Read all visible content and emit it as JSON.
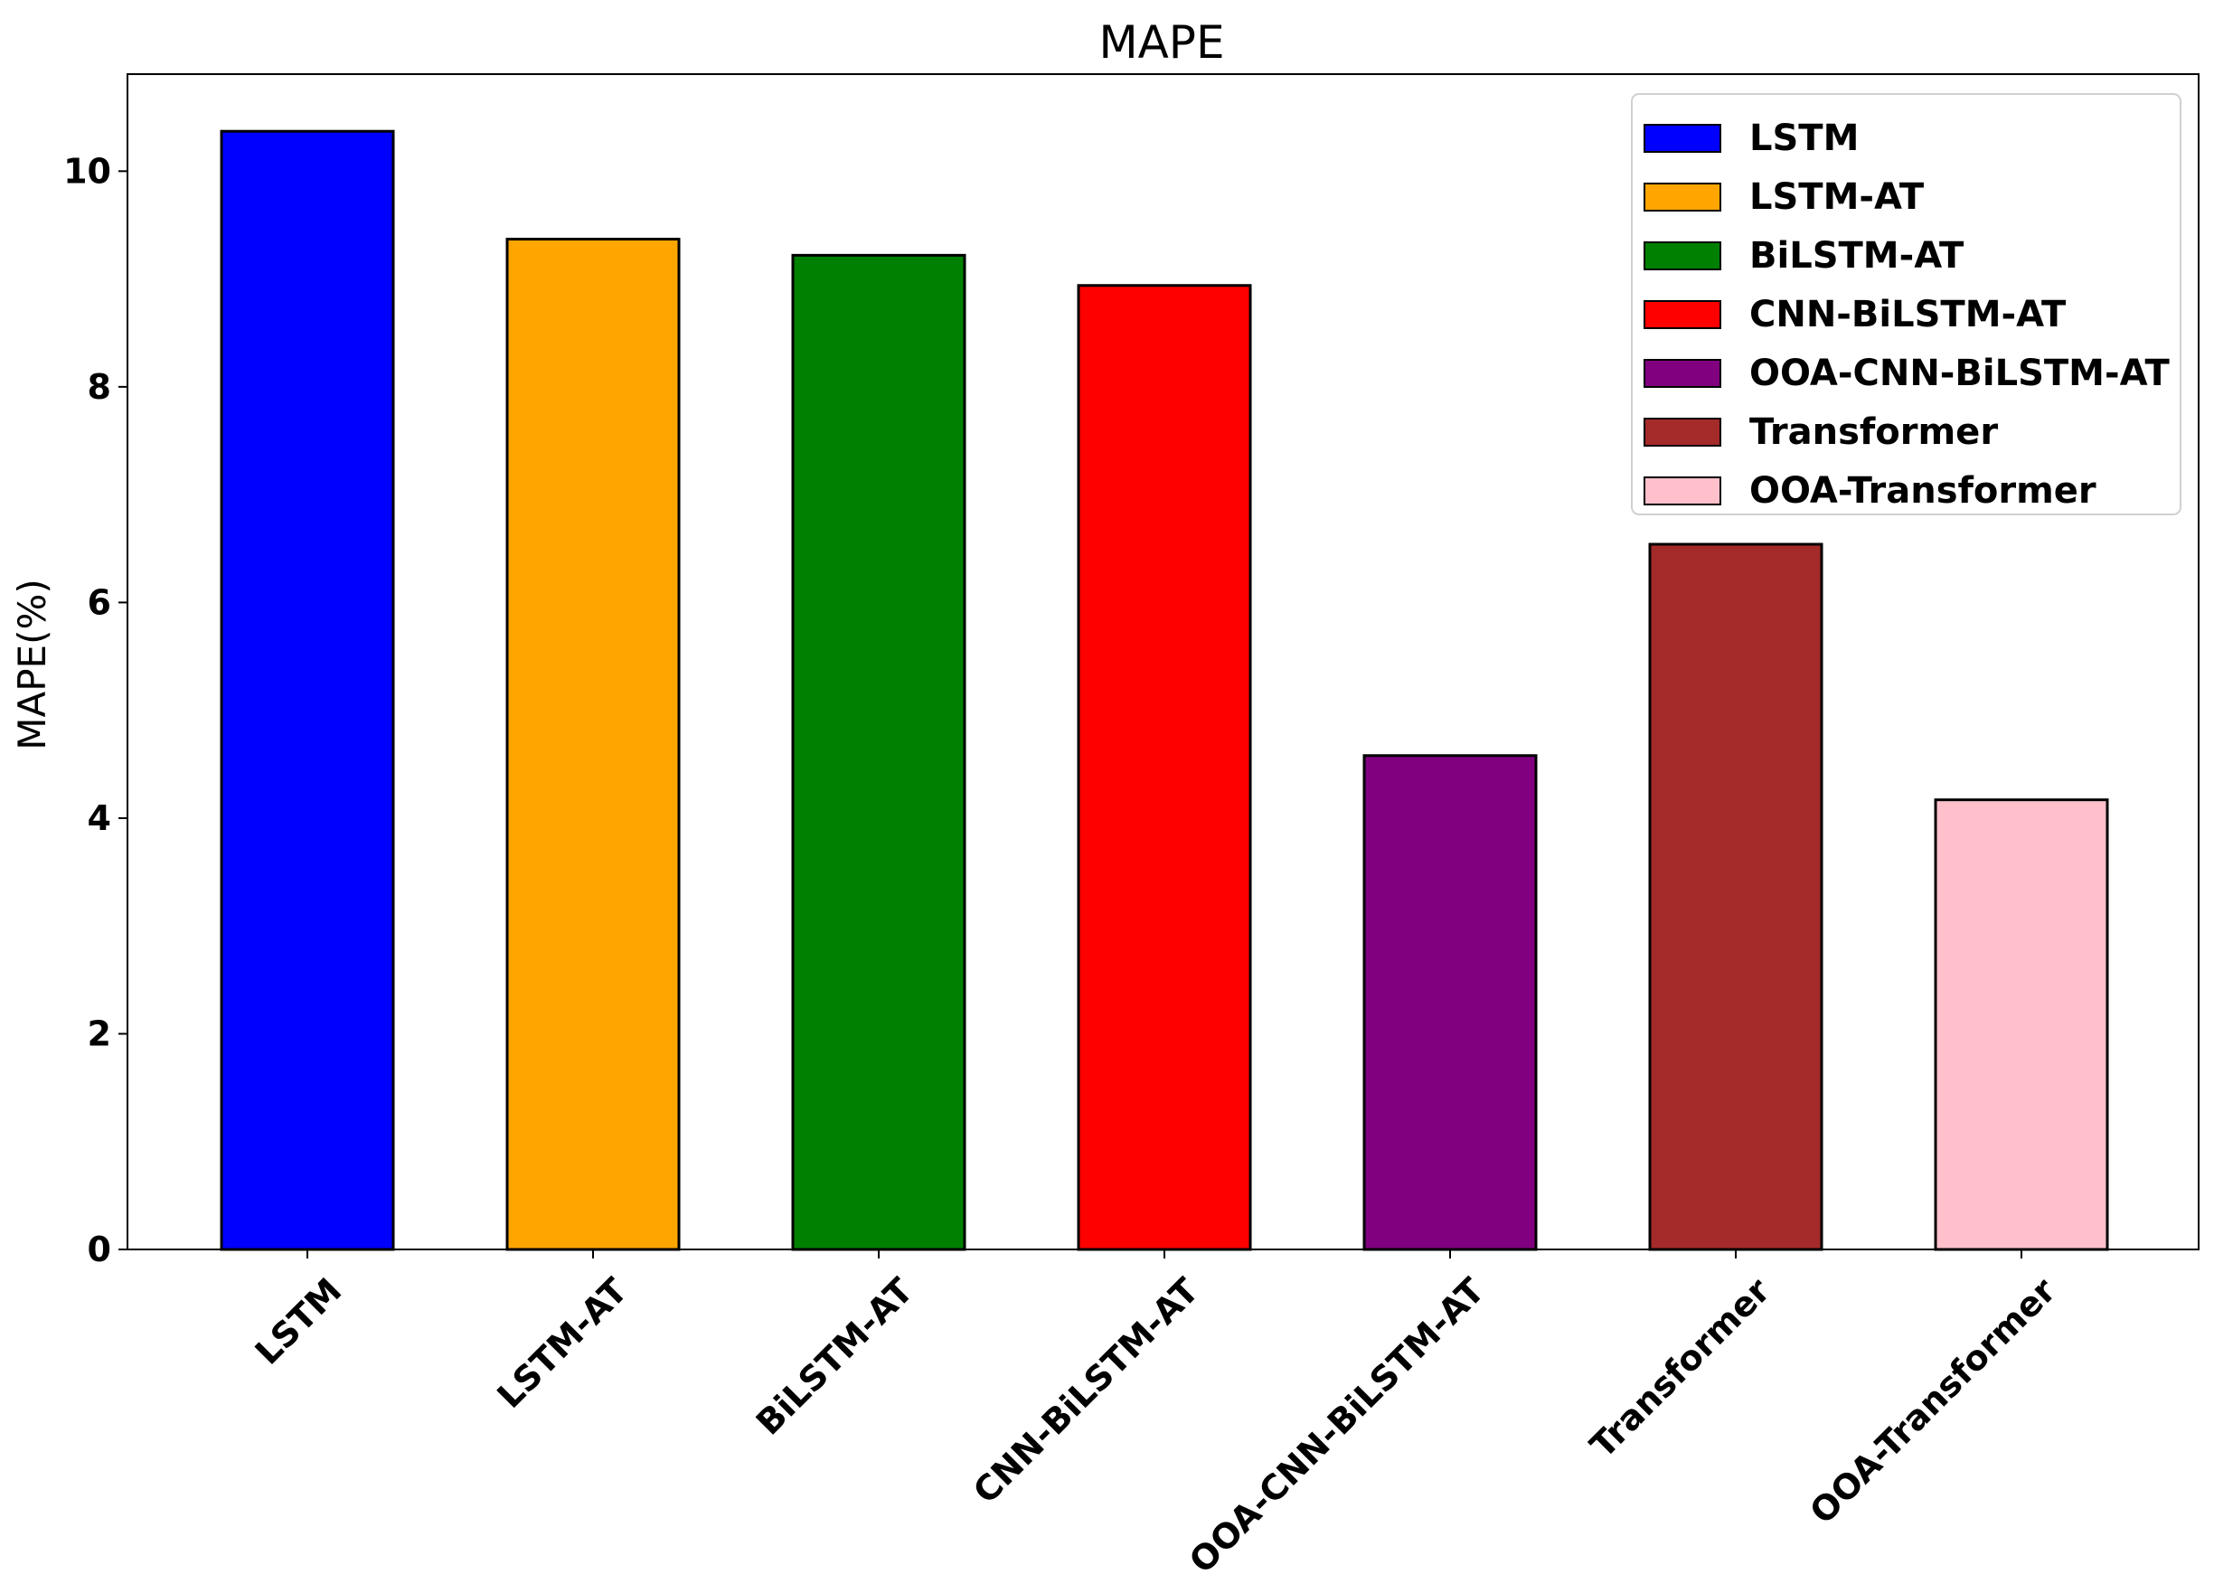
{
  "chart_data": {
    "type": "bar",
    "title": "MAPE",
    "xlabel": "",
    "ylabel": "MAPE(%)",
    "categories": [
      "LSTM",
      "LSTM-AT",
      "BiLSTM-AT",
      "CNN-BiLSTM-AT",
      "OOA-CNN-BiLSTM-AT",
      "Transformer",
      "OOA-Transformer"
    ],
    "values": [
      10.37,
      9.37,
      9.22,
      8.94,
      4.58,
      6.54,
      4.17
    ],
    "colors": [
      "#0000ff",
      "#ffa500",
      "#008000",
      "#ff0000",
      "#800080",
      "#a52a2a",
      "#ffc0cb"
    ],
    "ylim": [
      0,
      10.9
    ],
    "yticks": [
      0,
      2,
      4,
      6,
      8,
      10
    ],
    "grid": false,
    "legend": {
      "placement": "top-right",
      "entries": [
        "LSTM",
        "LSTM-AT",
        "BiLSTM-AT",
        "CNN-BiLSTM-AT",
        "OOA-CNN-BiLSTM-AT",
        "Transformer",
        "OOA-Transformer"
      ]
    }
  }
}
